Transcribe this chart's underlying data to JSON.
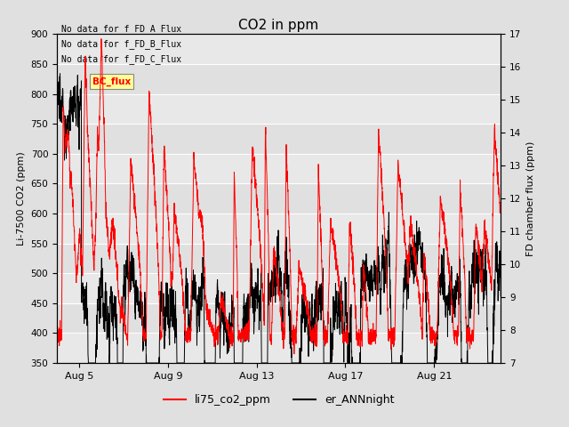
{
  "title": "CO2 in ppm",
  "left_ylabel": "Li-7500 CO2 (ppm)",
  "right_ylabel": "FD chamber flux (ppm)",
  "left_ylim": [
    350,
    900
  ],
  "right_ylim": [
    7.0,
    17.0
  ],
  "left_yticks": [
    350,
    400,
    450,
    500,
    550,
    600,
    650,
    700,
    750,
    800,
    850,
    900
  ],
  "right_yticks": [
    7.0,
    8.0,
    9.0,
    10.0,
    11.0,
    12.0,
    13.0,
    14.0,
    15.0,
    16.0,
    17.0
  ],
  "xtick_labels": [
    "Aug 5",
    "Aug 9",
    "Aug 13",
    "Aug 17",
    "Aug 21"
  ],
  "xtick_positions": [
    1,
    5,
    9,
    13,
    17
  ],
  "legend_entries": [
    "li75_co2_ppm",
    "er_ANNnight"
  ],
  "legend_colors": [
    "red",
    "black"
  ],
  "annotations": [
    "No data for f_FD_A_Flux",
    "No data for f_FD_B_Flux",
    "No data for f_FD_C_Flux"
  ],
  "annotation_color": "black",
  "bc_flux_box_color": "#ffff99",
  "bc_flux_text_color": "red",
  "background_color": "#e0e0e0",
  "band_color": "#cccccc",
  "white_band_color": "#e8e8e8",
  "line1_color": "red",
  "line2_color": "black",
  "seed": 12345
}
